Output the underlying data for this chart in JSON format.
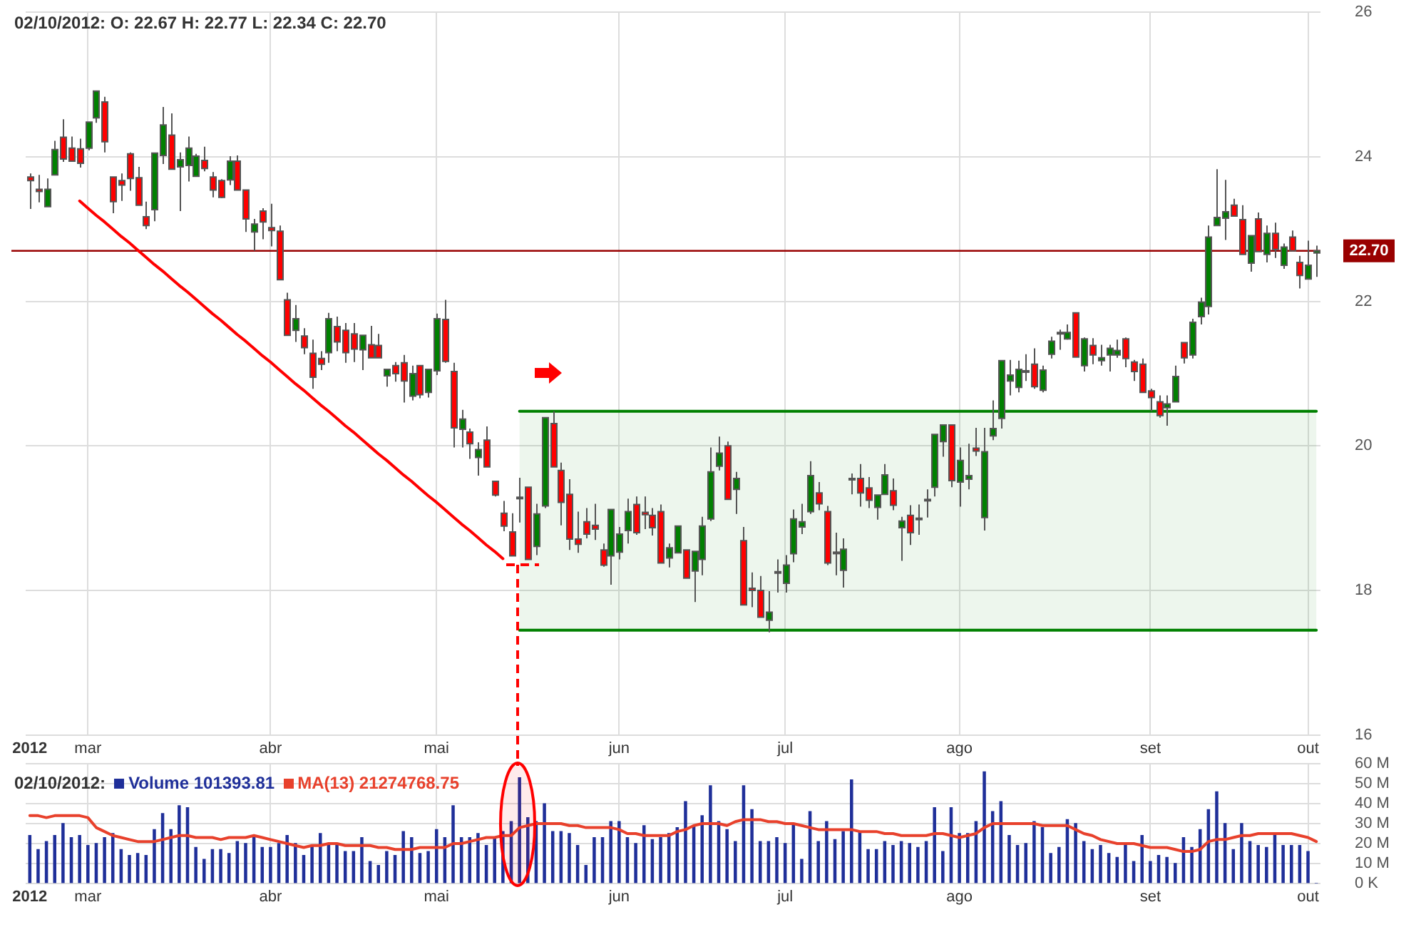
{
  "chart_data": [
    {
      "type": "candlestick",
      "title": "02/10/2012: O: 22.67 H: 22.77 L: 22.34 C: 22.70",
      "categories": [
        "2012",
        null,
        null,
        null,
        null,
        null,
        null,
        "mar",
        null,
        null,
        null,
        null,
        null,
        null,
        null,
        null,
        null,
        null,
        null,
        null,
        null,
        null,
        null,
        null,
        null,
        null,
        null,
        null,
        null,
        "abr",
        null,
        null,
        null,
        null,
        null,
        null,
        null,
        null,
        null,
        null,
        null,
        null,
        null,
        null,
        null,
        null,
        null,
        null,
        null,
        "mai",
        null,
        null,
        null,
        null,
        null,
        null,
        null,
        null,
        null,
        null,
        null,
        null,
        null,
        null,
        null,
        null,
        null,
        null,
        null,
        null,
        null,
        "jun",
        null,
        null,
        null,
        null,
        null,
        null,
        null,
        null,
        null,
        null,
        null,
        null,
        null,
        null,
        null,
        null,
        null,
        null,
        null,
        "jul",
        null,
        null,
        null,
        null,
        null,
        null,
        null,
        null,
        null,
        null,
        null,
        null,
        null,
        null,
        null,
        null,
        null,
        null,
        null,
        null,
        "ago",
        null,
        null,
        null,
        null,
        null,
        null,
        null,
        null,
        null,
        null,
        null,
        null,
        null,
        null,
        null,
        null,
        null,
        null,
        null,
        null,
        null,
        null,
        "set",
        null,
        null,
        null,
        null,
        null,
        null,
        null,
        null,
        null,
        null,
        null,
        null,
        null,
        null,
        null,
        null,
        null,
        null,
        "out",
        null
      ],
      "ohlc": [
        [
          23.72,
          23.77,
          23.28,
          23.67
        ],
        [
          23.55,
          23.75,
          23.37,
          23.52
        ],
        [
          23.31,
          23.7,
          23.31,
          23.55
        ],
        [
          23.75,
          24.22,
          23.75,
          24.1
        ],
        [
          24.27,
          24.52,
          23.93,
          23.97
        ],
        [
          24.12,
          24.28,
          23.94,
          23.94
        ],
        [
          24.11,
          24.25,
          23.85,
          23.91
        ],
        [
          24.12,
          24.48,
          24.09,
          24.48
        ],
        [
          24.54,
          24.91,
          24.47,
          24.91
        ],
        [
          24.76,
          24.83,
          24.06,
          24.21
        ],
        [
          23.72,
          23.72,
          23.22,
          23.38
        ],
        [
          23.67,
          23.77,
          23.39,
          23.61
        ],
        [
          24.04,
          24.06,
          23.53,
          23.7
        ],
        [
          23.71,
          23.86,
          23.33,
          23.33
        ],
        [
          23.17,
          23.38,
          23.0,
          23.05
        ],
        [
          23.27,
          24.05,
          23.11,
          24.05
        ],
        [
          24.02,
          24.69,
          23.9,
          24.44
        ],
        [
          24.3,
          24.6,
          23.83,
          23.83
        ],
        [
          23.86,
          24.06,
          23.25,
          23.96
        ],
        [
          23.88,
          24.28,
          23.66,
          24.12
        ],
        [
          23.73,
          24.04,
          23.73,
          24.01
        ],
        [
          23.95,
          24.14,
          23.8,
          23.84
        ],
        [
          23.72,
          23.79,
          23.44,
          23.54
        ],
        [
          23.67,
          23.69,
          23.43,
          23.44
        ],
        [
          23.68,
          24.01,
          23.61,
          23.94
        ],
        [
          23.94,
          24.02,
          23.54,
          23.54
        ],
        [
          23.54,
          23.54,
          22.96,
          23.14
        ],
        [
          22.96,
          23.14,
          22.7,
          23.07
        ],
        [
          23.25,
          23.29,
          22.86,
          23.1
        ],
        [
          23.02,
          23.35,
          22.76,
          22.98
        ],
        [
          22.97,
          23.05,
          22.3,
          22.3
        ],
        [
          22.02,
          22.12,
          21.53,
          21.53
        ],
        [
          21.6,
          21.95,
          21.44,
          21.76
        ],
        [
          21.52,
          21.63,
          21.27,
          21.36
        ],
        [
          21.28,
          21.47,
          20.79,
          20.95
        ],
        [
          21.21,
          21.31,
          21.05,
          21.13
        ],
        [
          21.29,
          21.84,
          21.15,
          21.76
        ],
        [
          21.65,
          21.79,
          21.31,
          21.44
        ],
        [
          21.6,
          21.7,
          21.15,
          21.29
        ],
        [
          21.55,
          21.7,
          21.16,
          21.34
        ],
        [
          21.33,
          21.53,
          21.05,
          21.53
        ],
        [
          21.4,
          21.66,
          21.22,
          21.22
        ],
        [
          21.39,
          21.55,
          21.22,
          21.22
        ],
        [
          20.97,
          21.06,
          20.82,
          21.06
        ],
        [
          21.11,
          21.16,
          20.89,
          21.0
        ],
        [
          21.15,
          21.26,
          20.6,
          20.9
        ],
        [
          20.69,
          21.11,
          20.63,
          21.0
        ],
        [
          21.11,
          21.11,
          20.66,
          20.71
        ],
        [
          20.74,
          21.06,
          20.67,
          21.06
        ],
        [
          21.04,
          21.83,
          20.98,
          21.76
        ],
        [
          21.75,
          22.02,
          21.15,
          21.17
        ],
        [
          21.03,
          21.15,
          19.98,
          20.25
        ],
        [
          20.23,
          20.5,
          19.98,
          20.37
        ],
        [
          20.19,
          20.24,
          19.82,
          20.03
        ],
        [
          19.84,
          20.05,
          19.59,
          19.95
        ],
        [
          20.08,
          20.27,
          19.71,
          19.71
        ],
        [
          19.51,
          19.51,
          19.3,
          19.32
        ],
        [
          19.07,
          19.24,
          18.82,
          18.89
        ],
        [
          18.81,
          19.07,
          18.48,
          18.48
        ],
        [
          19.28,
          19.56,
          18.94,
          19.29
        ],
        [
          19.43,
          19.43,
          18.43,
          18.43
        ],
        [
          18.61,
          19.2,
          18.49,
          19.06
        ],
        [
          19.17,
          20.39,
          19.14,
          20.39
        ],
        [
          20.31,
          20.48,
          19.71,
          19.71
        ],
        [
          19.66,
          19.77,
          18.9,
          19.22
        ],
        [
          19.33,
          19.54,
          18.56,
          18.71
        ],
        [
          18.71,
          19.09,
          18.52,
          18.64
        ],
        [
          18.95,
          19.14,
          18.72,
          18.78
        ],
        [
          18.9,
          19.2,
          18.7,
          18.85
        ],
        [
          18.56,
          18.65,
          18.33,
          18.35
        ],
        [
          18.48,
          19.12,
          18.08,
          19.12
        ],
        [
          18.53,
          18.88,
          18.43,
          18.78
        ],
        [
          18.83,
          19.27,
          18.65,
          19.09
        ],
        [
          19.19,
          19.3,
          18.77,
          18.8
        ],
        [
          19.08,
          19.3,
          18.85,
          19.05
        ],
        [
          19.04,
          19.14,
          18.76,
          18.87
        ],
        [
          19.09,
          19.19,
          18.38,
          18.38
        ],
        [
          18.45,
          18.65,
          18.32,
          18.59
        ],
        [
          18.52,
          18.89,
          18.52,
          18.89
        ],
        [
          18.56,
          18.56,
          18.17,
          18.17
        ],
        [
          18.27,
          18.54,
          17.84,
          18.54
        ],
        [
          18.43,
          19.02,
          18.21,
          18.89
        ],
        [
          18.99,
          19.98,
          18.96,
          19.64
        ],
        [
          19.72,
          20.13,
          19.66,
          19.9
        ],
        [
          20.0,
          20.06,
          19.26,
          19.26
        ],
        [
          19.4,
          19.64,
          19.06,
          19.55
        ],
        [
          18.69,
          18.88,
          17.8,
          17.8
        ],
        [
          18.03,
          18.25,
          17.77,
          18.0
        ],
        [
          18.0,
          18.2,
          17.63,
          17.63
        ],
        [
          17.59,
          17.99,
          17.42,
          17.7
        ],
        [
          18.25,
          18.43,
          17.97,
          18.26
        ],
        [
          18.1,
          18.49,
          17.97,
          18.35
        ],
        [
          18.51,
          19.12,
          18.39,
          18.99
        ],
        [
          18.88,
          19.2,
          18.78,
          18.95
        ],
        [
          19.09,
          19.79,
          19.06,
          19.59
        ],
        [
          19.35,
          19.5,
          19.11,
          19.2
        ],
        [
          19.09,
          19.17,
          18.35,
          18.38
        ],
        [
          18.52,
          18.8,
          18.21,
          18.53
        ],
        [
          18.28,
          18.72,
          18.04,
          18.57
        ],
        [
          19.54,
          19.62,
          19.33,
          19.55
        ],
        [
          19.55,
          19.75,
          19.16,
          19.35
        ],
        [
          19.42,
          19.57,
          19.14,
          19.25
        ],
        [
          19.15,
          19.32,
          18.98,
          19.32
        ],
        [
          19.33,
          19.75,
          19.33,
          19.6
        ],
        [
          19.38,
          19.55,
          19.11,
          19.18
        ],
        [
          18.87,
          19.02,
          18.41,
          18.96
        ],
        [
          19.04,
          19.18,
          18.63,
          18.8
        ],
        [
          18.99,
          19.19,
          18.77,
          19.0
        ],
        [
          19.25,
          19.4,
          19.01,
          19.26
        ],
        [
          19.43,
          20.16,
          19.3,
          20.16
        ],
        [
          20.06,
          20.29,
          19.85,
          20.29
        ],
        [
          20.29,
          20.29,
          19.43,
          19.52
        ],
        [
          19.5,
          19.98,
          19.16,
          19.8
        ],
        [
          19.54,
          20.03,
          19.4,
          19.59
        ],
        [
          19.97,
          20.25,
          19.86,
          19.93
        ],
        [
          19.01,
          20.25,
          18.83,
          19.92
        ],
        [
          20.14,
          20.63,
          20.08,
          20.24
        ],
        [
          20.38,
          21.18,
          20.24,
          21.18
        ],
        [
          20.9,
          21.19,
          20.7,
          20.98
        ],
        [
          20.81,
          21.18,
          20.74,
          21.06
        ],
        [
          21.03,
          21.27,
          20.9,
          21.04
        ],
        [
          21.13,
          21.35,
          20.79,
          20.82
        ],
        [
          20.77,
          21.11,
          20.74,
          21.05
        ],
        [
          21.27,
          21.51,
          21.21,
          21.45
        ],
        [
          21.55,
          21.61,
          21.33,
          21.57
        ],
        [
          21.48,
          21.68,
          21.47,
          21.57
        ],
        [
          21.84,
          21.84,
          21.23,
          21.23
        ],
        [
          21.11,
          21.5,
          21.03,
          21.48
        ],
        [
          21.39,
          21.49,
          21.13,
          21.26
        ],
        [
          21.18,
          21.4,
          21.11,
          21.22
        ],
        [
          21.26,
          21.4,
          21.03,
          21.35
        ],
        [
          21.26,
          21.47,
          21.22,
          21.32
        ],
        [
          21.48,
          21.5,
          21.09,
          21.21
        ],
        [
          21.16,
          21.19,
          20.9,
          21.03
        ],
        [
          21.13,
          21.21,
          20.74,
          20.74
        ],
        [
          20.76,
          20.79,
          20.48,
          20.67
        ],
        [
          20.61,
          20.7,
          20.39,
          20.42
        ],
        [
          20.53,
          20.7,
          20.28,
          20.58
        ],
        [
          20.61,
          21.11,
          20.61,
          20.96
        ],
        [
          21.43,
          21.43,
          21.14,
          21.22
        ],
        [
          21.26,
          21.76,
          21.21,
          21.71
        ],
        [
          21.79,
          22.05,
          21.68,
          21.99
        ],
        [
          21.93,
          23.05,
          21.82,
          22.89
        ],
        [
          23.05,
          23.83,
          23.05,
          23.16
        ],
        [
          23.15,
          23.68,
          22.85,
          23.24
        ],
        [
          23.33,
          23.42,
          23.18,
          23.18
        ],
        [
          23.13,
          23.33,
          22.65,
          22.65
        ],
        [
          22.53,
          22.91,
          22.41,
          22.91
        ],
        [
          23.14,
          23.23,
          22.69,
          22.69
        ],
        [
          22.65,
          23.05,
          22.54,
          22.94
        ],
        [
          22.94,
          23.09,
          22.6,
          22.72
        ],
        [
          22.5,
          22.8,
          22.45,
          22.75
        ],
        [
          22.89,
          22.98,
          22.69,
          22.7
        ],
        [
          22.54,
          22.63,
          22.18,
          22.36
        ],
        [
          22.31,
          22.84,
          22.31,
          22.5
        ],
        [
          22.67,
          22.77,
          22.34,
          22.7
        ]
      ],
      "series": [
        {
          "type": "line",
          "color": "#ff0000",
          "values": [
            null,
            null,
            null,
            null,
            null,
            null,
            23.39,
            23.29,
            23.19,
            23.1,
            23.0,
            22.9,
            22.81,
            22.71,
            22.61,
            22.51,
            22.42,
            22.32,
            22.22,
            22.13,
            22.03,
            21.93,
            21.83,
            21.74,
            21.64,
            21.54,
            21.45,
            21.35,
            21.25,
            21.16,
            21.06,
            20.96,
            20.86,
            20.77,
            20.67,
            20.57,
            20.48,
            20.38,
            20.28,
            20.19,
            20.09,
            19.99,
            19.89,
            19.8,
            19.7,
            19.6,
            19.51,
            19.41,
            19.31,
            19.22,
            19.12,
            19.02,
            18.92,
            18.83,
            18.73,
            18.63,
            18.54,
            18.44,
            null,
            null,
            null,
            null,
            null,
            null,
            null,
            null,
            null,
            null,
            null,
            null,
            null,
            null,
            null,
            null,
            null,
            null,
            null,
            null,
            null,
            null,
            null,
            null,
            null,
            null,
            null,
            null,
            null,
            null,
            null,
            null,
            null,
            null,
            null,
            null,
            null,
            null,
            null,
            null,
            null,
            null,
            null,
            null,
            null,
            null,
            null,
            null,
            null,
            null,
            null,
            null,
            null,
            null,
            null,
            null,
            null,
            null,
            null,
            null,
            null,
            null,
            null,
            null,
            null,
            null,
            null,
            null,
            null,
            null,
            null,
            null,
            null,
            null,
            null,
            null,
            null,
            null,
            null,
            null,
            null,
            null,
            null,
            null,
            null,
            null,
            null,
            null,
            null,
            null,
            null,
            null,
            null,
            null,
            null,
            null,
            null,
            null
          ]
        },
        {
          "type": "line",
          "color": "#008000",
          "values": [
            null,
            null,
            null,
            null,
            null,
            null,
            null,
            null,
            null,
            null,
            null,
            null,
            null,
            null,
            null,
            null,
            null,
            null,
            null,
            null,
            null,
            null,
            null,
            null,
            null,
            null,
            null,
            null,
            null,
            null,
            null,
            null,
            null,
            null,
            null,
            null,
            null,
            null,
            null,
            null,
            null,
            null,
            null,
            null,
            null,
            null,
            null,
            null,
            null,
            null,
            null,
            null,
            null,
            null,
            null,
            null,
            null,
            null,
            null,
            20.48,
            20.48,
            20.48,
            20.48,
            20.48,
            20.48,
            20.48,
            20.48,
            20.48,
            20.48,
            20.48,
            20.48,
            20.48,
            20.48,
            20.48,
            20.48,
            20.48,
            20.48,
            20.48,
            20.48,
            20.48,
            20.48,
            20.48,
            20.48,
            20.48,
            20.48,
            20.48,
            20.48,
            20.48,
            20.48,
            20.48,
            20.48,
            20.48,
            20.48,
            20.48,
            20.48,
            20.48,
            20.48,
            20.48,
            20.48,
            20.48,
            20.48,
            20.48,
            20.48,
            20.48,
            20.48,
            20.48,
            20.48,
            20.48,
            20.48,
            20.48,
            20.48,
            20.48,
            20.48,
            20.48,
            20.48,
            20.48,
            20.48,
            20.48,
            20.48,
            20.48,
            20.48,
            20.48,
            20.48,
            20.48,
            20.48,
            20.48,
            20.48,
            20.48,
            20.48,
            20.48,
            20.48,
            20.48,
            20.48,
            20.48,
            20.48,
            20.48,
            20.48,
            20.48,
            20.48,
            20.48,
            20.48,
            20.48,
            20.48,
            20.48,
            20.48,
            20.48,
            20.48,
            20.48,
            20.48,
            20.48,
            20.48,
            20.48,
            20.48,
            20.48,
            20.48,
            20.48
          ],
          "lower": [
            null,
            null,
            null,
            null,
            null,
            null,
            null,
            null,
            null,
            null,
            null,
            null,
            null,
            null,
            null,
            null,
            null,
            null,
            null,
            null,
            null,
            null,
            null,
            null,
            null,
            null,
            null,
            null,
            null,
            null,
            null,
            null,
            null,
            null,
            null,
            null,
            null,
            null,
            null,
            null,
            null,
            null,
            null,
            null,
            null,
            null,
            null,
            null,
            null,
            null,
            null,
            null,
            null,
            null,
            null,
            null,
            null,
            null,
            null,
            17.45,
            17.45,
            17.45,
            17.45,
            17.45,
            17.45,
            17.45,
            17.45,
            17.45,
            17.45,
            17.45,
            17.45,
            17.45,
            17.45,
            17.45,
            17.45,
            17.45,
            17.45,
            17.45,
            17.45,
            17.45,
            17.45,
            17.45,
            17.45,
            17.45,
            17.45,
            17.45,
            17.45,
            17.45,
            17.45,
            17.45,
            17.45,
            17.45,
            17.45,
            17.45,
            17.45,
            17.45,
            17.45,
            17.45,
            17.45,
            17.45,
            17.45,
            17.45,
            17.45,
            17.45,
            17.45,
            17.45,
            17.45,
            17.45,
            17.45,
            17.45,
            17.45,
            17.45,
            17.45,
            17.45,
            17.45,
            17.45,
            17.45,
            17.45,
            17.45,
            17.45,
            17.45,
            17.45,
            17.45,
            17.45,
            17.45,
            17.45,
            17.45,
            17.45,
            17.45,
            17.45,
            17.45,
            17.45,
            17.45,
            17.45,
            17.45,
            17.45,
            17.45,
            17.45,
            17.45,
            17.45,
            17.45,
            17.45,
            17.45,
            17.45,
            17.45,
            17.45,
            17.45,
            17.45,
            17.45,
            17.45,
            17.45,
            17.45,
            17.45,
            17.45,
            17.45,
            17.45
          ],
          "upper": [
            null,
            null,
            null,
            null,
            null,
            null,
            null,
            null,
            null,
            null,
            null,
            null,
            null,
            null,
            null,
            null,
            null,
            null,
            null,
            null,
            null,
            null,
            null,
            null,
            null,
            null,
            null,
            null,
            null,
            null,
            null,
            null,
            null,
            null,
            null,
            null,
            null,
            null,
            null,
            null,
            null,
            null,
            null,
            null,
            null,
            null,
            null,
            null,
            null,
            null,
            null,
            null,
            null,
            null,
            null,
            null,
            null,
            null,
            null,
            20.48,
            20.48,
            20.48,
            20.48,
            20.48,
            20.48,
            20.48,
            20.48,
            20.48,
            20.48,
            20.48,
            20.48,
            20.48,
            20.48,
            20.48,
            20.48,
            20.48,
            20.48,
            20.48,
            20.48,
            20.48,
            20.48,
            20.48,
            20.48,
            20.48,
            20.48,
            20.48,
            20.48,
            20.48,
            20.48,
            20.48,
            20.48,
            20.48,
            20.48,
            20.48,
            20.48,
            20.48,
            20.48,
            20.48,
            20.48,
            20.48,
            20.48,
            20.48,
            20.48,
            20.48,
            20.48,
            20.48,
            20.48,
            20.48,
            20.48,
            20.48,
            20.48,
            20.48,
            20.48,
            20.48,
            20.48,
            20.48,
            20.48,
            20.48,
            20.48,
            20.48,
            20.48,
            20.48,
            20.48,
            20.48,
            20.48,
            20.48,
            20.48,
            20.48,
            20.48,
            20.48,
            20.48,
            20.48,
            20.48,
            20.48,
            20.48,
            20.48,
            20.48,
            20.48,
            20.48,
            20.48,
            20.48,
            20.48,
            20.48,
            20.48,
            20.48,
            20.48,
            20.48,
            20.48,
            20.48,
            20.48,
            20.48,
            20.48,
            20.48,
            20.48,
            20.48,
            20.48
          ]
        },
        {
          "type": "line",
          "color": "#008000",
          "values": [
            null,
            null,
            null,
            null,
            null,
            null,
            null,
            null,
            null,
            null,
            null,
            null,
            null,
            null,
            null,
            null,
            null,
            null,
            null,
            null,
            null,
            null,
            null,
            null,
            null,
            null,
            null,
            null,
            null,
            null,
            null,
            null,
            null,
            null,
            null,
            null,
            null,
            null,
            null,
            null,
            null,
            null,
            null,
            null,
            null,
            null,
            null,
            null,
            null,
            null,
            null,
            null,
            null,
            null,
            null,
            null,
            null,
            null,
            null,
            17.45,
            17.45,
            17.45,
            17.45,
            17.45,
            17.45,
            17.45,
            17.45,
            17.45,
            17.45,
            17.45,
            17.45,
            17.45,
            17.45,
            17.45,
            17.45,
            17.45,
            17.45,
            17.45,
            17.45,
            17.45,
            17.45,
            17.45,
            17.45,
            17.45,
            17.45,
            17.45,
            17.45,
            17.45,
            17.45,
            17.45,
            17.45,
            17.45,
            17.45,
            17.45,
            17.45,
            17.45,
            17.45,
            17.45,
            17.45,
            17.45,
            17.45,
            17.45,
            17.45,
            17.45,
            17.45,
            17.45,
            17.45,
            17.45,
            17.45,
            17.45,
            17.45,
            17.45,
            17.45,
            17.45,
            17.45,
            17.45,
            17.45,
            17.45,
            17.45,
            17.45,
            17.45,
            17.45,
            17.45,
            17.45,
            17.45,
            17.45,
            17.45,
            17.45,
            17.45,
            17.45,
            17.45,
            17.45,
            17.45,
            17.45,
            17.45,
            17.45,
            17.45,
            17.45,
            17.45,
            17.45,
            17.45,
            17.45,
            17.45,
            17.45,
            17.45,
            17.45,
            17.45,
            17.45,
            17.45,
            17.45,
            17.45,
            17.45,
            17.45,
            17.45,
            17.45,
            17.45
          ]
        }
      ],
      "ref_lines": [
        {
          "axis": "y",
          "value": 22.7,
          "label": "22.70",
          "color": "#990000"
        }
      ],
      "ylim": [
        16,
        26
      ],
      "yticks": [
        16,
        18,
        20,
        22,
        24,
        26
      ],
      "grid": true,
      "marker": "none"
    },
    {
      "type": "bar",
      "title": "02/10/2012:",
      "legend": "top left",
      "grid": true,
      "marker": "none",
      "categories": [
        "2012",
        null,
        null,
        null,
        null,
        null,
        null,
        "mar",
        null,
        null,
        null,
        null,
        null,
        null,
        null,
        null,
        null,
        null,
        null,
        null,
        null,
        null,
        null,
        null,
        null,
        null,
        null,
        null,
        null,
        "abr",
        null,
        null,
        null,
        null,
        null,
        null,
        null,
        null,
        null,
        null,
        null,
        null,
        null,
        null,
        null,
        null,
        null,
        null,
        null,
        "mai",
        null,
        null,
        null,
        null,
        null,
        null,
        null,
        null,
        null,
        null,
        null,
        null,
        null,
        null,
        null,
        null,
        null,
        null,
        null,
        null,
        null,
        "jun",
        null,
        null,
        null,
        null,
        null,
        null,
        null,
        null,
        null,
        null,
        null,
        null,
        null,
        null,
        null,
        null,
        null,
        null,
        null,
        "jul",
        null,
        null,
        null,
        null,
        null,
        null,
        null,
        null,
        null,
        null,
        null,
        null,
        null,
        null,
        null,
        null,
        null,
        null,
        null,
        null,
        "ago",
        null,
        null,
        null,
        null,
        null,
        null,
        null,
        null,
        null,
        null,
        null,
        null,
        null,
        null,
        null,
        null,
        null,
        null,
        null,
        null,
        null,
        null,
        "set",
        null,
        null,
        null,
        null,
        null,
        null,
        null,
        null,
        null,
        null,
        null,
        null,
        null,
        null,
        null,
        null,
        null,
        null,
        "out",
        null
      ],
      "series": [
        {
          "name": "Volume 101393.81",
          "color": "#1f2f99",
          "values": [
            24,
            17,
            21,
            24,
            30,
            23,
            24,
            19,
            20,
            23,
            25,
            17,
            14,
            15,
            14,
            27,
            35,
            27,
            39,
            38,
            18,
            12,
            17,
            17,
            15,
            21,
            20,
            23,
            18,
            18,
            20,
            24,
            20,
            14,
            19,
            25,
            20,
            20,
            16,
            16,
            23,
            11,
            9,
            16,
            14,
            26,
            23,
            15,
            16,
            27,
            23,
            39,
            23,
            23,
            25,
            19,
            23,
            26,
            31,
            53,
            33,
            31,
            40,
            26,
            26,
            25,
            19,
            9,
            23,
            23,
            31,
            31,
            23,
            20,
            29,
            22,
            23,
            25,
            28,
            41,
            29,
            34,
            49,
            31,
            27,
            21,
            49,
            37,
            21,
            21,
            23,
            20,
            30,
            12,
            36,
            21,
            31,
            22,
            26,
            52,
            26,
            17,
            17,
            21,
            19,
            21,
            20,
            18,
            21,
            38,
            16,
            38,
            25,
            25,
            31,
            56,
            36,
            41,
            24,
            19,
            20,
            31,
            28,
            15,
            18,
            32,
            30,
            21,
            17,
            19,
            15,
            13,
            19,
            11,
            24,
            11,
            14,
            13,
            10,
            23,
            18,
            27,
            37,
            46,
            30,
            17,
            30,
            21,
            19,
            18,
            25,
            19,
            19,
            19,
            16,
            0
          ]
        },
        {
          "name": "MA(13) 21274768.75",
          "type": "line",
          "color": "#e8412c",
          "values": [
            34,
            34,
            33,
            34,
            34,
            34,
            34,
            33,
            28,
            26,
            24,
            23,
            22,
            21,
            21,
            21,
            22,
            23,
            24,
            24,
            23,
            23,
            23,
            22,
            23,
            23,
            23,
            24,
            23,
            22,
            21,
            20,
            19,
            18,
            19,
            19,
            20,
            20,
            19,
            19,
            19,
            19,
            18,
            18,
            17,
            17,
            17,
            18,
            18,
            18,
            18,
            20,
            20,
            21,
            22,
            23,
            23,
            24,
            24,
            28,
            29,
            30,
            30,
            30,
            30,
            29,
            29,
            28,
            28,
            28,
            28,
            27,
            25,
            25,
            24,
            24,
            24,
            24,
            26,
            27,
            29,
            30,
            30,
            30,
            29,
            31,
            32,
            32,
            32,
            31,
            31,
            30,
            30,
            29,
            28,
            27,
            27,
            27,
            27,
            27,
            26,
            26,
            26,
            25,
            25,
            24,
            24,
            24,
            24,
            25,
            25,
            24,
            23,
            24,
            25,
            28,
            30,
            30,
            30,
            30,
            30,
            30,
            29,
            29,
            29,
            29,
            27,
            25,
            24,
            22,
            21,
            20,
            20,
            20,
            19,
            18,
            18,
            18,
            17,
            16,
            16,
            17,
            21,
            22,
            22,
            23,
            24,
            24,
            25,
            25,
            25,
            25,
            25,
            24,
            23,
            21
          ]
        }
      ],
      "ylim": [
        0,
        60
      ],
      "yticks": [
        {
          "value": 0,
          "label": "0 K"
        },
        {
          "value": 10,
          "label": "10 M"
        },
        {
          "value": 20,
          "label": "20 M"
        },
        {
          "value": 30,
          "label": "30 M"
        },
        {
          "value": 40,
          "label": "40 M"
        },
        {
          "value": 50,
          "label": "50 M"
        },
        {
          "value": 60,
          "label": "60 M"
        }
      ]
    }
  ]
}
